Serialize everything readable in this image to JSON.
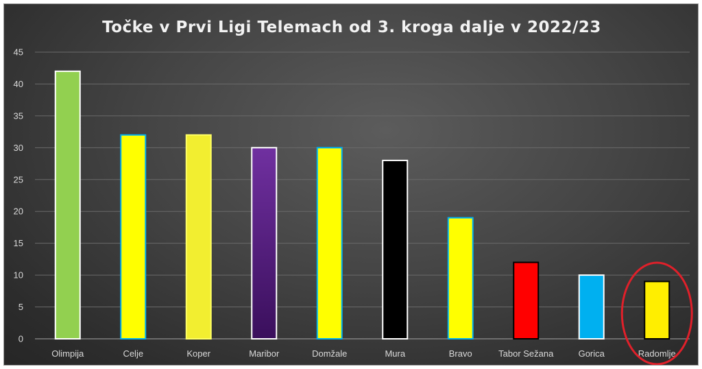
{
  "chart_data": {
    "type": "bar",
    "title": "Točke v Prvi Ligi Telemach od 3. kroga dalje v 2022/23",
    "xlabel": "",
    "ylabel": "",
    "ylim": [
      0,
      45
    ],
    "yticks": [
      0,
      5,
      10,
      15,
      20,
      25,
      30,
      35,
      40,
      45
    ],
    "grid": true,
    "categories": [
      "Olimpija",
      "Celje",
      "Koper",
      "Maribor",
      "Domžale",
      "Mura",
      "Bravo",
      "Tabor Sežana",
      "Gorica",
      "Radomlje"
    ],
    "values": [
      42,
      32,
      32,
      30,
      30,
      28,
      19,
      12,
      10,
      9
    ],
    "colors": [
      {
        "fill": "#92d050",
        "stroke": "#ffffff"
      },
      {
        "fill": "#ffff00",
        "stroke": "#00b0f0"
      },
      {
        "fill": "#f2ee30",
        "stroke": "#ffff66"
      },
      {
        "fill": "purple-gradient",
        "stroke": "#ffffff"
      },
      {
        "fill": "#ffff00",
        "stroke": "#00b0f0"
      },
      {
        "fill": "#000000",
        "stroke": "#ffffff"
      },
      {
        "fill": "#ffff00",
        "stroke": "#00b0f0"
      },
      {
        "fill": "#ff0000",
        "stroke": "#000000"
      },
      {
        "fill": "#00b0f0",
        "stroke": "#ffffff"
      },
      {
        "fill": "#ffee00",
        "stroke": "#000000"
      }
    ],
    "highlight": {
      "category": "Radomlje",
      "shape": "circle",
      "color": "#e0202a"
    }
  }
}
